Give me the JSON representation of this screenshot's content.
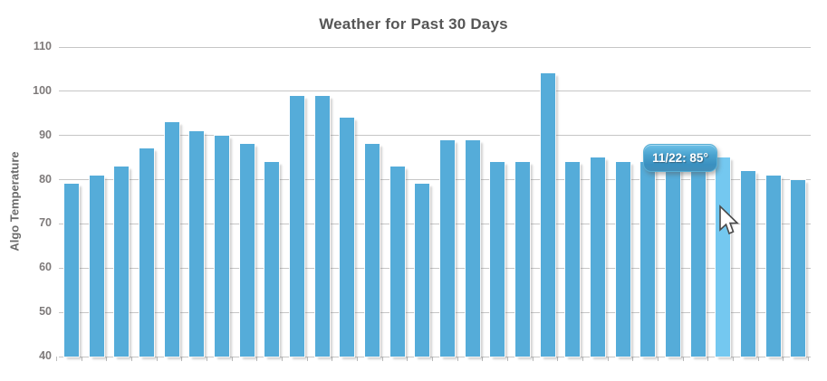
{
  "chart_data": {
    "type": "bar",
    "title": "Weather for Past 30 Days",
    "xlabel": "",
    "ylabel": "Algo Temperature",
    "ylim": [
      40,
      110
    ],
    "yticks": [
      110,
      100,
      90,
      80,
      70,
      60,
      50,
      40
    ],
    "grid": true,
    "legend": "none",
    "x_tick_labels": "none",
    "x": [
      1,
      2,
      3,
      4,
      5,
      6,
      7,
      8,
      9,
      10,
      11,
      12,
      13,
      14,
      15,
      16,
      17,
      18,
      19,
      20,
      21,
      22,
      23,
      24,
      25,
      26,
      27,
      28,
      29,
      30
    ],
    "values": [
      79,
      81,
      83,
      87,
      93,
      91,
      90,
      88,
      84,
      99,
      99,
      94,
      88,
      83,
      79,
      89,
      89,
      84,
      84,
      104,
      84,
      85,
      84,
      84,
      84,
      84,
      85,
      82,
      81,
      80
    ],
    "bar_color": "#55acd9",
    "highlight_color": "#74c8f0",
    "highlight_index": 26,
    "tooltip": {
      "text": "11/22: 85°",
      "date": "11/22",
      "value": 85
    }
  },
  "cursor": {
    "type": "arrow-pointer"
  }
}
